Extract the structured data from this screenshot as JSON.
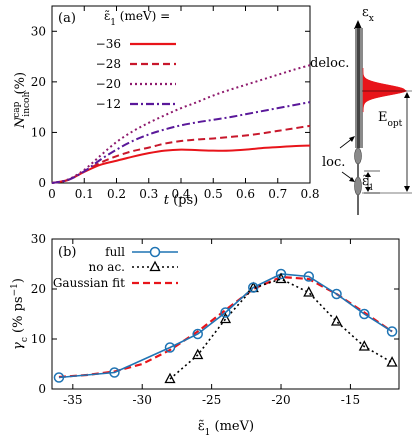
{
  "chart_data": [
    {
      "panel": "(a)",
      "type": "line",
      "xlabel": "t (ps)",
      "ylabel": "N_incoh^cap (%)",
      "xlim": [
        0,
        0.8
      ],
      "ylim": [
        0,
        35
      ],
      "xticks": [
        "0",
        "0.1",
        "0.2",
        "0.3",
        "0.4",
        "0.5",
        "0.6",
        "0.7",
        "0.8"
      ],
      "yticks": [
        "0",
        "10",
        "20",
        "30"
      ],
      "legend_title": "ε̃1 (meV) =",
      "legend_position": "top-left",
      "series": [
        {
          "name": "−36",
          "color": "#e8141a",
          "dash": "solid",
          "x": [
            0,
            0.05,
            0.1,
            0.15,
            0.2,
            0.25,
            0.3,
            0.35,
            0.4,
            0.45,
            0.5,
            0.55,
            0.6,
            0.65,
            0.7,
            0.75,
            0.8
          ],
          "y": [
            0,
            0.6,
            2.2,
            3.6,
            4.4,
            5.2,
            5.9,
            6.4,
            6.6,
            6.5,
            6.4,
            6.4,
            6.6,
            6.9,
            7.1,
            7.3,
            7.4
          ]
        },
        {
          "name": "−28",
          "color": "#c8172b",
          "dash": "dashed",
          "x": [
            0,
            0.05,
            0.1,
            0.15,
            0.2,
            0.25,
            0.3,
            0.35,
            0.4,
            0.45,
            0.5,
            0.55,
            0.6,
            0.65,
            0.7,
            0.75,
            0.8
          ],
          "y": [
            0,
            0.6,
            2.3,
            4.0,
            5.3,
            6.3,
            7.0,
            7.8,
            8.3,
            8.6,
            8.8,
            9.1,
            9.4,
            9.8,
            10.3,
            10.8,
            11.3
          ]
        },
        {
          "name": "−20",
          "color": "#8e1a6d",
          "dash": "dotted",
          "x": [
            0,
            0.05,
            0.1,
            0.15,
            0.2,
            0.25,
            0.3,
            0.35,
            0.4,
            0.45,
            0.5,
            0.55,
            0.6,
            0.65,
            0.7,
            0.75,
            0.8
          ],
          "y": [
            0,
            0.7,
            2.6,
            5.4,
            8.1,
            10.2,
            11.9,
            13.4,
            14.8,
            16.0,
            17.3,
            18.4,
            19.4,
            20.4,
            21.4,
            22.4,
            23.3
          ]
        },
        {
          "name": "−12",
          "color": "#5a189a",
          "dash": "dashdot",
          "x": [
            0,
            0.05,
            0.1,
            0.15,
            0.2,
            0.25,
            0.3,
            0.35,
            0.4,
            0.45,
            0.5,
            0.55,
            0.6,
            0.65,
            0.7,
            0.75,
            0.8
          ],
          "y": [
            0,
            0.6,
            2.3,
            4.6,
            6.6,
            8.3,
            9.6,
            10.6,
            11.4,
            12.0,
            12.5,
            13.0,
            13.6,
            14.2,
            14.8,
            15.4,
            16.0
          ]
        }
      ]
    },
    {
      "panel": "(b)",
      "type": "line",
      "xlabel": "ε̃1 (meV)",
      "ylabel": "γc (% ps−1)",
      "xlim": [
        -36.5,
        -11.5
      ],
      "ylim": [
        0,
        30
      ],
      "xticks": [
        {
          "value": -35,
          "label": "-35"
        },
        {
          "value": -30,
          "label": "-30"
        },
        {
          "value": -25,
          "label": "-25"
        },
        {
          "value": -20,
          "label": "-20"
        },
        {
          "value": -15,
          "label": "-15"
        }
      ],
      "yticks": [
        "0",
        "10",
        "20",
        "30"
      ],
      "legend_position": "top-left",
      "series": [
        {
          "name": "full",
          "color": "#1f74b4",
          "dash": "solid",
          "marker": "circle",
          "x": [
            -36,
            -32,
            -28,
            -26,
            -24,
            -22,
            -20,
            -18,
            -16,
            -14,
            -12
          ],
          "y": [
            2.3,
            3.3,
            8.3,
            11.0,
            15.3,
            20.3,
            23.0,
            22.5,
            19.0,
            15.0,
            11.5
          ]
        },
        {
          "name": "no ac.",
          "color": "#000000",
          "dash": "dotted",
          "marker": "triangle",
          "x": [
            -28,
            -26,
            -24,
            -22,
            -20,
            -18,
            -16,
            -14,
            -12
          ],
          "y": [
            2.0,
            6.8,
            14.0,
            20.2,
            22.0,
            19.3,
            13.5,
            8.5,
            5.3
          ]
        },
        {
          "name": "Gaussian fit",
          "color": "#e8141a",
          "dash": "dashed",
          "marker": "none",
          "x": [
            -36,
            -34,
            -32,
            -30,
            -28,
            -26,
            -24,
            -22,
            -20,
            -18,
            -16,
            -14,
            -12
          ],
          "y": [
            2.4,
            2.8,
            3.5,
            5.0,
            7.8,
            11.5,
            15.8,
            20.0,
            22.4,
            22.0,
            19.0,
            15.3,
            11.5
          ]
        }
      ]
    }
  ],
  "schematic": {
    "labels": {
      "energy_axis": "εx",
      "deloc": "deloc.",
      "e_opt": "Eopt",
      "loc": "loc.",
      "eps1": "ε̃1"
    },
    "colors": {
      "bar": "#888888",
      "peak": "#e8141a"
    }
  }
}
